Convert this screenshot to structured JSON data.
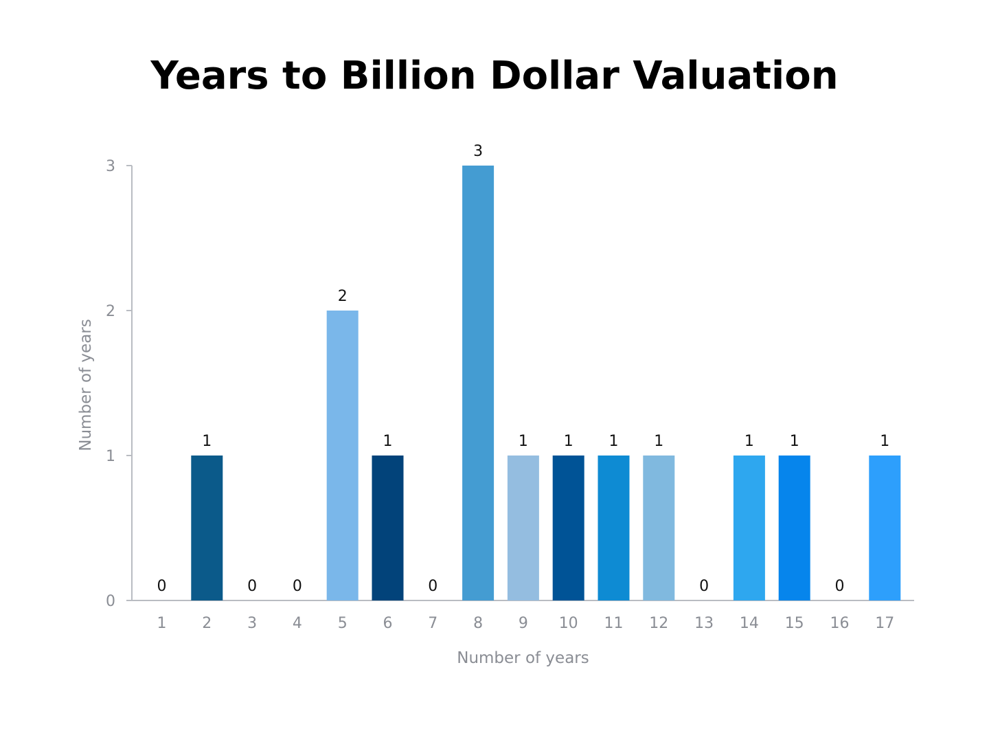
{
  "chart_data": {
    "type": "bar",
    "title": "Years to Billion Dollar Valuation",
    "xlabel": "Number of years",
    "ylabel": "Number of years",
    "categories": [
      "1",
      "2",
      "3",
      "4",
      "5",
      "6",
      "7",
      "8",
      "9",
      "10",
      "11",
      "12",
      "13",
      "14",
      "15",
      "16",
      "17"
    ],
    "values": [
      0,
      1,
      0,
      0,
      2,
      1,
      0,
      3,
      1,
      1,
      1,
      1,
      0,
      1,
      1,
      0,
      1
    ],
    "yticks": [
      0,
      1,
      2,
      3
    ],
    "ylim": [
      0,
      3
    ],
    "grid": false,
    "legend": "none",
    "bar_colors": [
      "#0b5a8a",
      "#0b5a8a",
      "#0b5a8a",
      "#0b5a8a",
      "#7ab7ea",
      "#02437a",
      "#02437a",
      "#449cd2",
      "#94bde0",
      "#005396",
      "#0e8bd3",
      "#80b9df",
      "#80b9df",
      "#2ea7ef",
      "#0685ec",
      "#0685ec",
      "#2d9ffc"
    ]
  }
}
